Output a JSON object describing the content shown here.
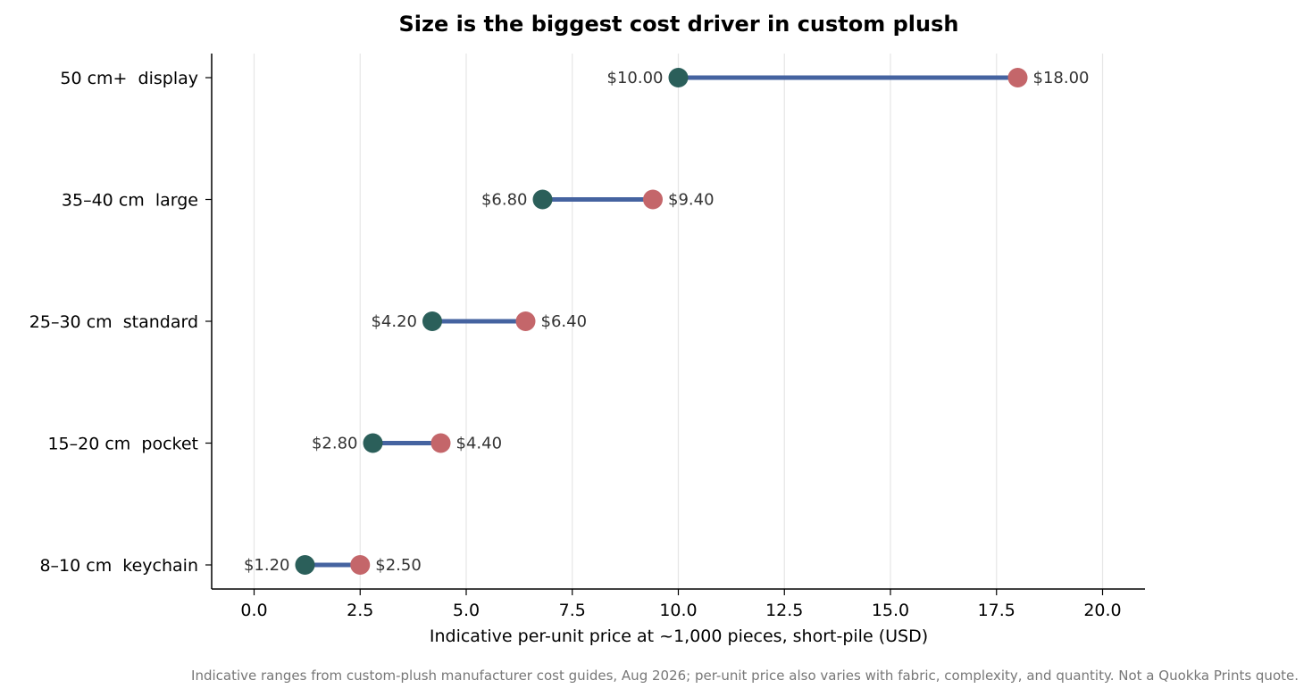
{
  "chart_data": {
    "type": "dumbbell",
    "title": "Size is the biggest cost driver in custom plush",
    "xlabel": "Indicative per-unit price at ~1,000 pieces, short-pile (USD)",
    "footnote": "Indicative ranges from custom-plush manufacturer cost guides, Aug 2026; per-unit price also varies with fabric, complexity, and quantity. Not a Quokka Prints quote.",
    "categories": [
      "8–10 cm  keychain",
      "15–20 cm  pocket",
      "25–30 cm  standard",
      "35–40 cm  large",
      "50 cm+  display"
    ],
    "low": [
      1.2,
      2.8,
      4.2,
      6.8,
      10.0
    ],
    "high": [
      2.5,
      4.4,
      6.4,
      9.4,
      18.0
    ],
    "low_labels": [
      "$1.20",
      "$2.80",
      "$4.20",
      "$6.80",
      "$10.00"
    ],
    "high_labels": [
      "$2.50",
      "$4.40",
      "$6.40",
      "$9.40",
      "$18.00"
    ],
    "xticks": [
      0,
      2.5,
      5,
      7.5,
      10,
      12.5,
      15,
      17.5,
      20
    ],
    "xtick_labels": [
      "0.0",
      "2.5",
      "5.0",
      "7.5",
      "10.0",
      "12.5",
      "15.0",
      "17.5",
      "20.0"
    ],
    "xlim": [
      -1,
      21
    ],
    "grid": "vertical",
    "colors": {
      "low_dot": "#2b5f5a",
      "high_dot": "#c4666a",
      "connector": "#4563a0",
      "grid": "#e6e6e6",
      "axis": "#000000"
    }
  }
}
